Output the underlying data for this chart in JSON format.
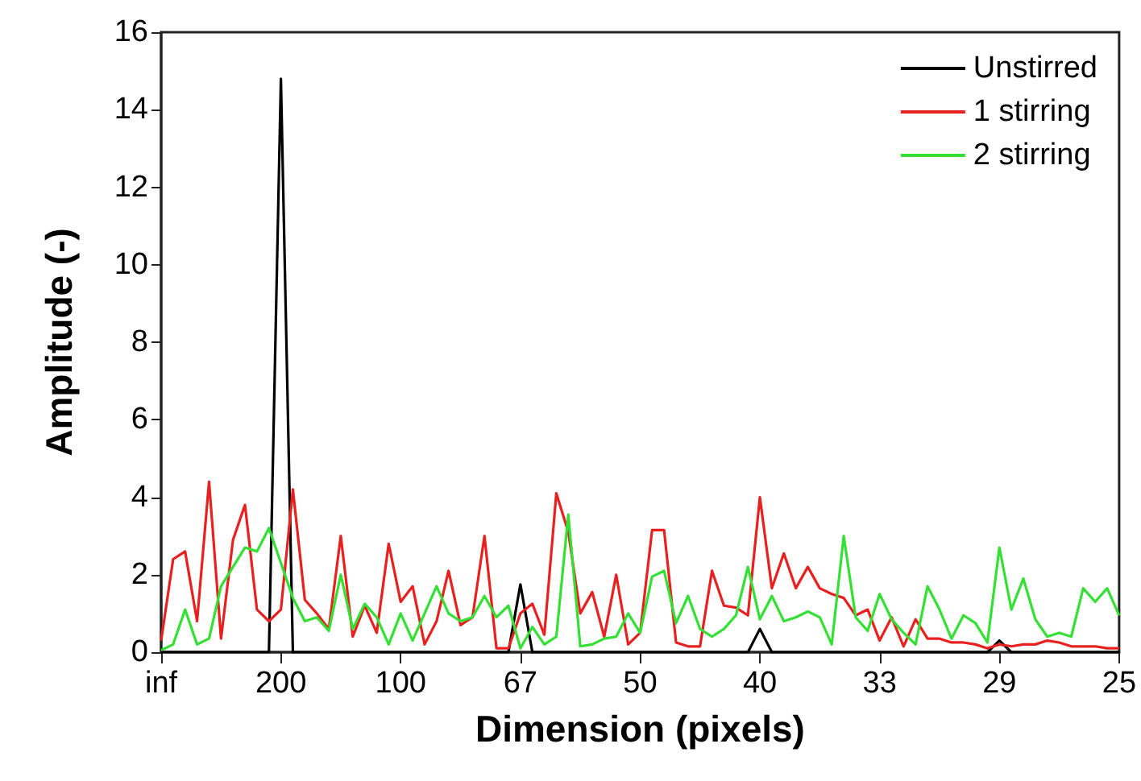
{
  "chart_data": {
    "type": "line",
    "xlabel": "Dimension (pixels)",
    "ylabel": "Amplitude (-)",
    "categories": [
      "inf",
      null,
      null,
      null,
      null,
      null,
      null,
      null,
      null,
      null,
      "200",
      null,
      null,
      null,
      null,
      null,
      null,
      null,
      null,
      null,
      "100",
      null,
      null,
      null,
      null,
      null,
      null,
      null,
      null,
      null,
      "67",
      null,
      null,
      null,
      null,
      null,
      null,
      null,
      null,
      null,
      "50",
      null,
      null,
      null,
      null,
      null,
      null,
      null,
      null,
      null,
      "40",
      null,
      null,
      null,
      null,
      null,
      null,
      null,
      null,
      null,
      "33",
      null,
      null,
      null,
      null,
      null,
      null,
      null,
      null,
      null,
      "29",
      null,
      null,
      null,
      null,
      null,
      null,
      null,
      null,
      null,
      "25"
    ],
    "series": [
      {
        "name": "Unstirred",
        "color": "#000000",
        "values": [
          0,
          0,
          0,
          0,
          0,
          0,
          0,
          0,
          0,
          0,
          14.8,
          0,
          0,
          0,
          0,
          0,
          0,
          0,
          0,
          0,
          0,
          0,
          0,
          0,
          0,
          0,
          0,
          0,
          0,
          0,
          1.75,
          0,
          0,
          0,
          0,
          0,
          0,
          0,
          0,
          0,
          0,
          0,
          0,
          0,
          0,
          0,
          0,
          0,
          0,
          0,
          0.6,
          0,
          0,
          0,
          0,
          0,
          0,
          0,
          0,
          0,
          0,
          0,
          0,
          0,
          0,
          0,
          0,
          0,
          0,
          0,
          0.3,
          0,
          0,
          0,
          0,
          0,
          0,
          0,
          0,
          0,
          0
        ]
      },
      {
        "name": "1 stirring",
        "color": "#e8201e",
        "values": [
          0.3,
          2.4,
          2.6,
          0.8,
          4.4,
          0.35,
          2.9,
          3.8,
          1.1,
          0.8,
          1.1,
          4.2,
          1.35,
          1,
          0.6,
          3,
          0.4,
          1.2,
          0.5,
          2.8,
          1.3,
          1.7,
          0.2,
          0.8,
          2.1,
          0.7,
          0.9,
          3,
          0.1,
          0.1,
          1,
          1.25,
          0.45,
          4.1,
          3.1,
          1,
          1.55,
          0.4,
          2,
          0.2,
          0.5,
          3.15,
          3.15,
          0.25,
          0.15,
          0.15,
          2.1,
          1.2,
          1.15,
          0.95,
          4,
          1.65,
          2.55,
          1.65,
          2.2,
          1.65,
          1.5,
          1.4,
          0.95,
          1.1,
          0.3,
          0.9,
          0.15,
          0.85,
          0.35,
          0.35,
          0.25,
          0.25,
          0.2,
          0.1,
          0.2,
          0.15,
          0.2,
          0.2,
          0.3,
          0.25,
          0.15,
          0.15,
          0.15,
          0.1,
          0.1
        ]
      },
      {
        "name": "2 stirring",
        "color": "#33e033",
        "values": [
          0.05,
          0.2,
          1.1,
          0.2,
          0.35,
          1.7,
          2.2,
          2.7,
          2.6,
          3.2,
          2.3,
          1.4,
          0.8,
          0.9,
          0.55,
          2,
          0.6,
          1.25,
          0.9,
          0.2,
          1,
          0.3,
          1,
          1.7,
          1,
          0.8,
          0.9,
          1.45,
          0.9,
          1.2,
          0.1,
          0.65,
          0.2,
          0.4,
          3.55,
          0.15,
          0.2,
          0.35,
          0.4,
          1,
          0.5,
          1.95,
          2.1,
          0.75,
          1.45,
          0.6,
          0.4,
          0.6,
          0.95,
          2.2,
          0.85,
          1.45,
          0.8,
          0.9,
          1.05,
          0.9,
          0.2,
          3,
          0.9,
          0.55,
          1.5,
          0.85,
          0.5,
          0.2,
          1.7,
          1.1,
          0.35,
          0.95,
          0.75,
          0.25,
          2.7,
          1.1,
          1.9,
          0.85,
          0.4,
          0.5,
          0.4,
          1.65,
          1.3,
          1.65,
          0.95
        ]
      }
    ],
    "ylim": [
      0,
      16
    ],
    "yticks": [
      0,
      2,
      4,
      6,
      8,
      10,
      12,
      14,
      16
    ],
    "grid": false,
    "legend": "top right",
    "marker": "none",
    "line_style": "solid"
  }
}
